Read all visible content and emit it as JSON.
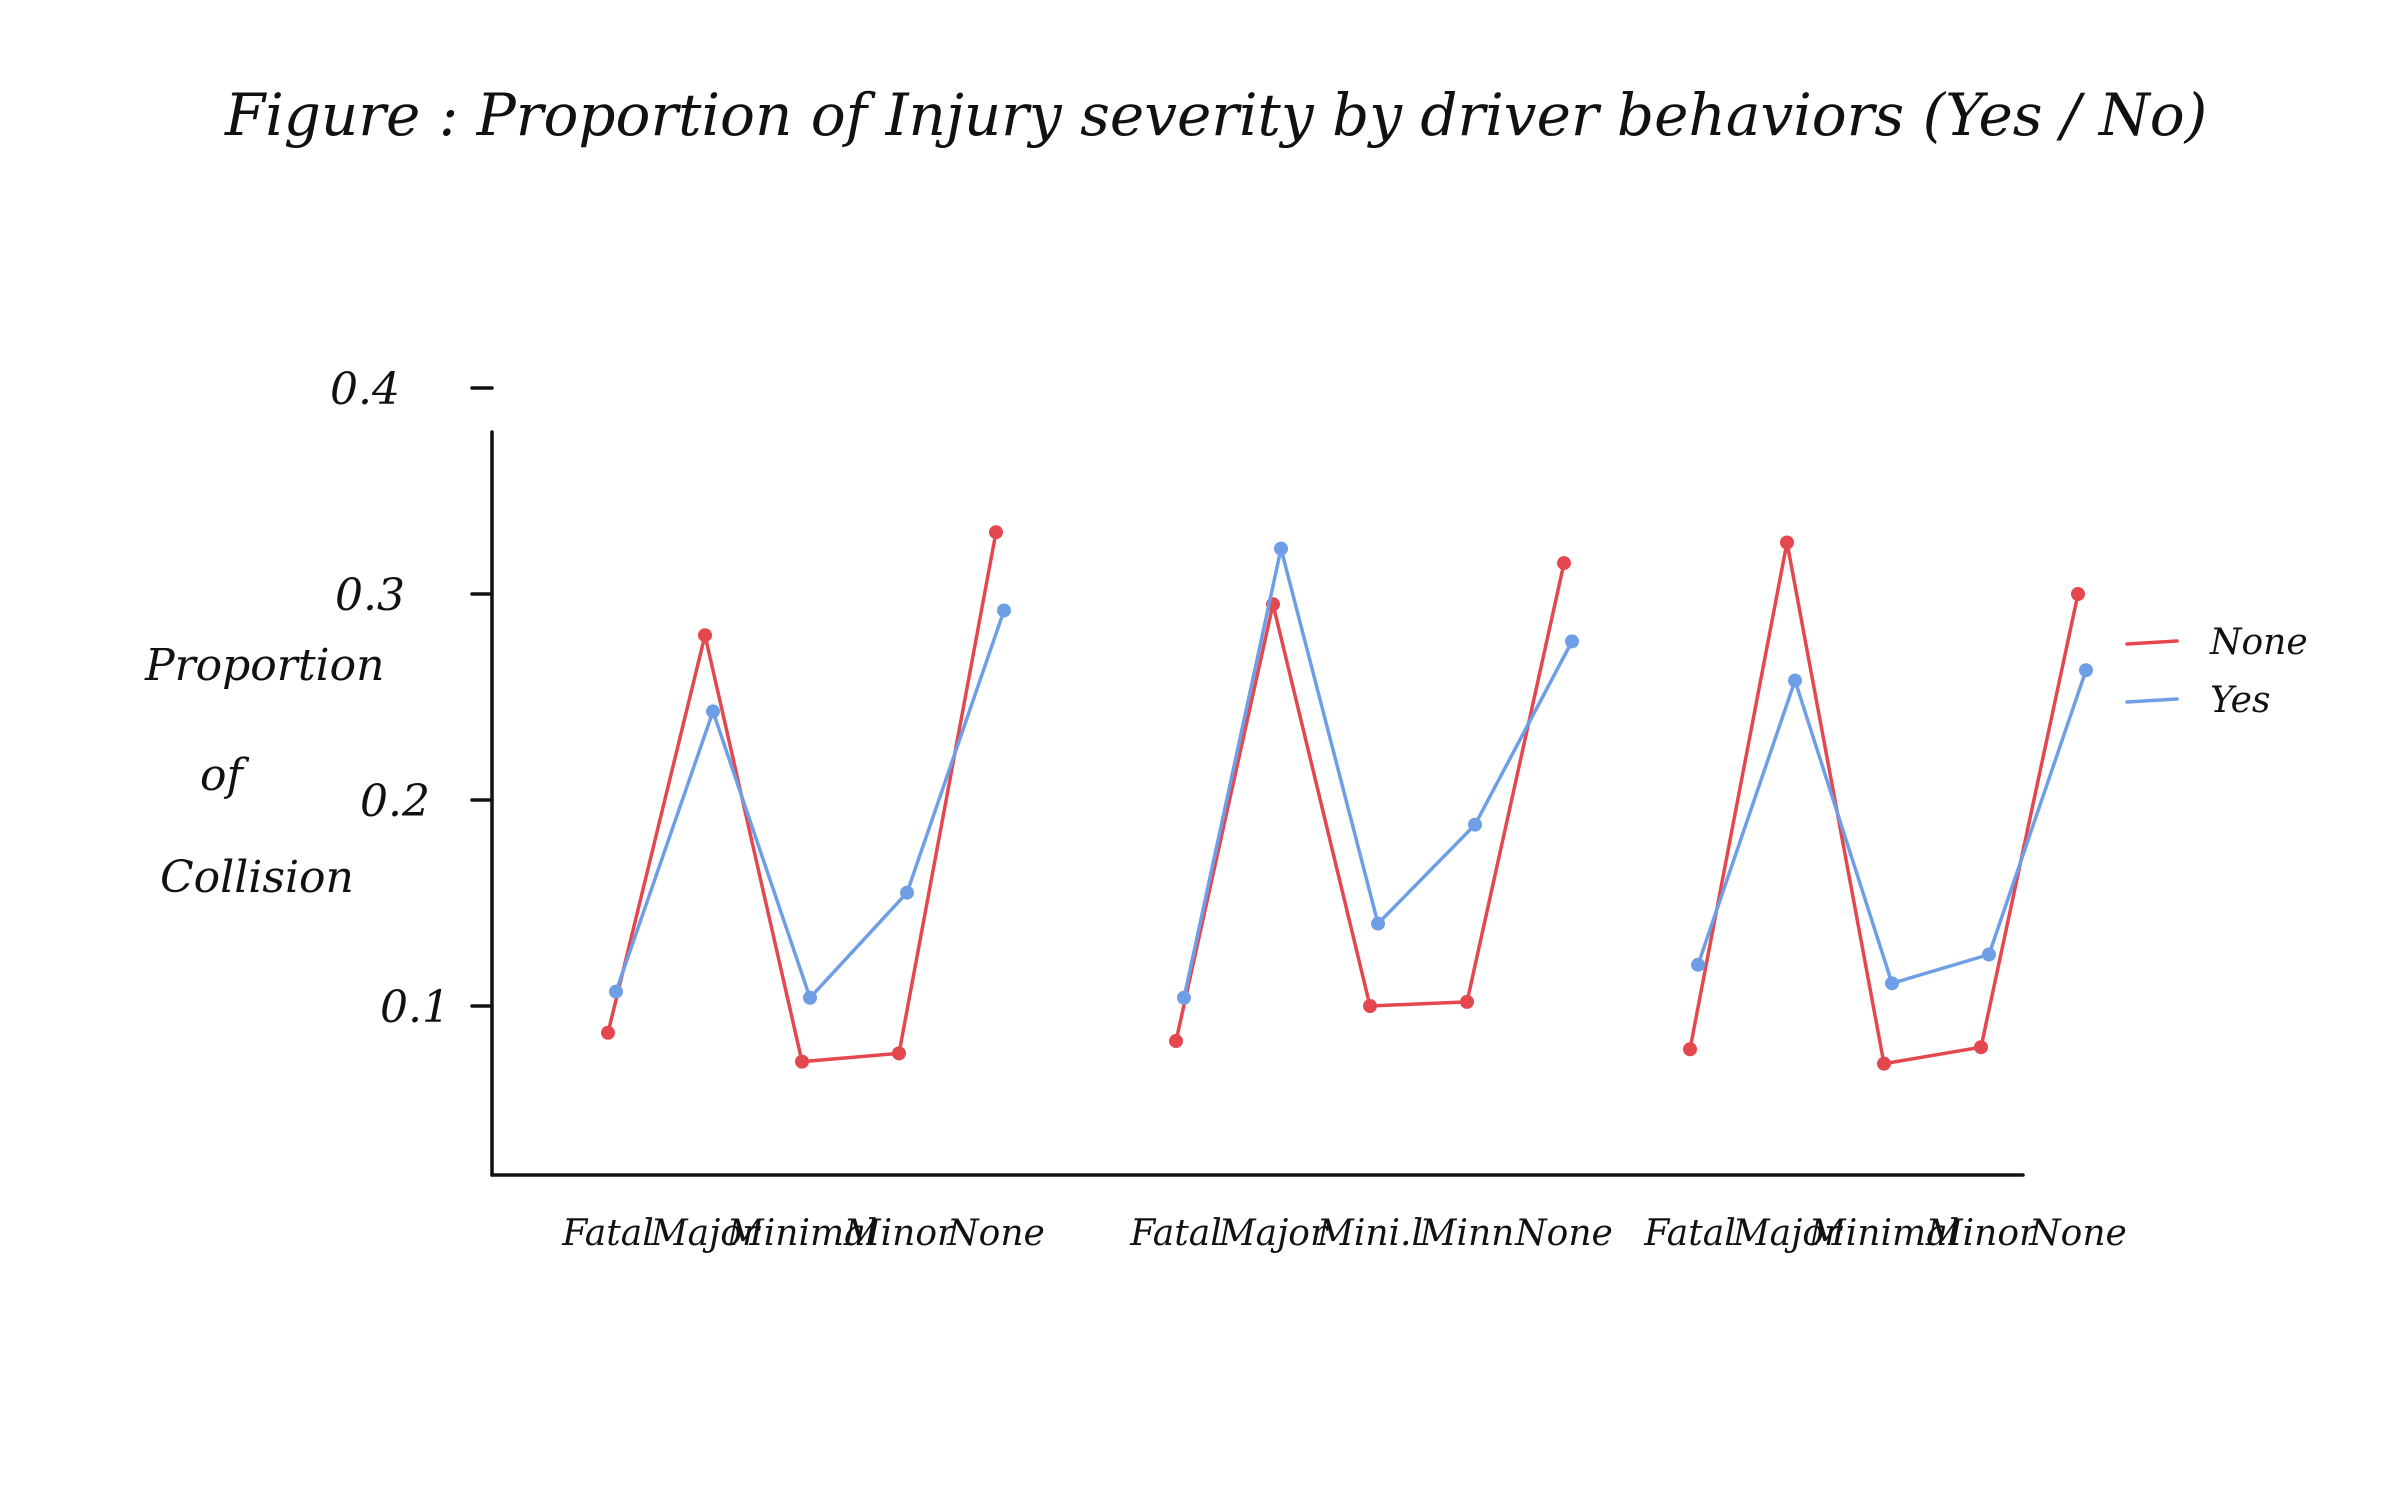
{
  "chart_data": {
    "type": "line",
    "title": "Figure : Proportion of Injury severity by driver behaviors (Yes / No)",
    "ylabel": [
      "Proportion",
      "of",
      "Collision"
    ],
    "xlabel": "",
    "ylim": [
      0.02,
      0.4
    ],
    "yticks": [
      {
        "value": 0.4,
        "label": "0.4"
      },
      {
        "value": 0.3,
        "label": "0.3"
      },
      {
        "value": 0.2,
        "label": "0.2"
      },
      {
        "value": 0.1,
        "label": "0.1"
      }
    ],
    "groups": [
      {
        "categories": [
          "Fatal",
          "Major",
          "Minimal",
          "Minor",
          "None"
        ]
      },
      {
        "categories": [
          "Fatal",
          "Major",
          "Mini.l",
          "Minn",
          "None"
        ]
      },
      {
        "categories": [
          "Fatal",
          "Major",
          "Minimal",
          "Minor",
          "None"
        ]
      }
    ],
    "legend": {
      "position": "right"
    },
    "series": [
      {
        "name": "None",
        "color": "#e4474e",
        "groups": [
          [
            0.087,
            0.28,
            0.073,
            0.077,
            0.33
          ],
          [
            0.083,
            0.295,
            0.1,
            0.102,
            0.315
          ],
          [
            0.079,
            0.325,
            0.072,
            0.08,
            0.3
          ]
        ]
      },
      {
        "name": "Yes",
        "color": "#6e9fe6",
        "groups": [
          [
            0.107,
            0.243,
            0.104,
            0.155,
            0.292
          ],
          [
            0.104,
            0.322,
            0.14,
            0.188,
            0.277
          ],
          [
            0.12,
            0.258,
            0.111,
            0.125,
            0.263
          ]
        ]
      }
    ]
  }
}
